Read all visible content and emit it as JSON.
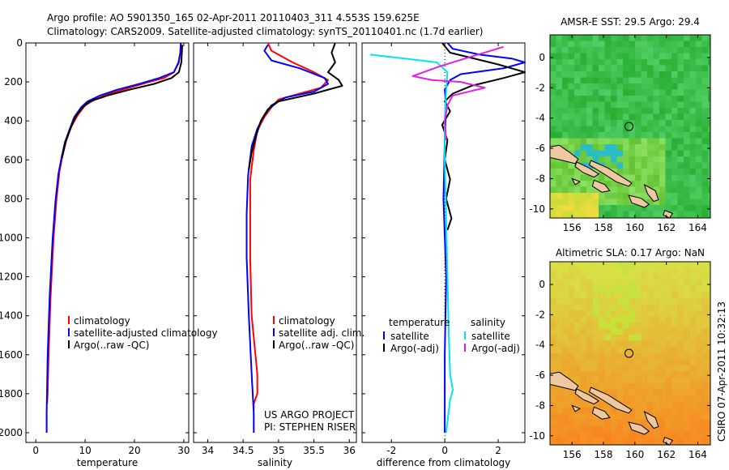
{
  "header": {
    "line1": "Argo profile: AO 5901350_165 02-Apr-2011 20110403_311 4.553S 159.625E",
    "line2": "Climatology: CARS2009. Satellite-adjusted climatology: synTS_20110401.nc (1.7d earlier)"
  },
  "side_label": "CSIRO 07-Apr-2011 10:32:13",
  "project": {
    "line1": "US ARGO PROJECT",
    "line2": "PI: STEPHEN RISER"
  },
  "colors": {
    "red": "#ff0000",
    "blue": "#0000ff",
    "black": "#000000",
    "cyan": "#00e5ee",
    "magenta": "#e020e0",
    "land": "#f0c8a0"
  },
  "chart_data": [
    {
      "type": "line",
      "xlabel": "temperature",
      "xlim": [
        -2,
        31
      ],
      "ylim": [
        0,
        2050
      ],
      "xticks": [
        "0",
        "10",
        "20",
        "30"
      ],
      "yticks": [
        "0",
        "200",
        "400",
        "600",
        "800",
        "1000",
        "1200",
        "1400",
        "1600",
        "1800",
        "2000"
      ],
      "legend": [
        "climatology",
        "satellite-adjusted climatology",
        "Argo(..raw -QC)"
      ],
      "series": [
        {
          "name": "climatology",
          "color": "#ff0000",
          "x": [
            29.4,
            29.3,
            28.9,
            28.0,
            26.0,
            23.0,
            19.0,
            15.0,
            12.0,
            10.0,
            8.5,
            7.2,
            6.2,
            5.4,
            4.8,
            4.2,
            3.6,
            3.0,
            2.6,
            2.4,
            2.3
          ],
          "y": [
            0,
            50,
            100,
            150,
            180,
            200,
            230,
            260,
            290,
            320,
            370,
            430,
            500,
            580,
            660,
            800,
            1000,
            1300,
            1600,
            1800,
            1850
          ]
        },
        {
          "name": "satellite-adjusted climatology",
          "color": "#0000ff",
          "x": [
            29.4,
            29.3,
            29.0,
            28.0,
            25.0,
            21.0,
            16.5,
            13.0,
            10.5,
            9.2,
            7.8,
            6.9,
            5.9,
            5.2,
            4.6,
            4.0,
            3.4,
            2.8,
            2.4,
            2.2,
            2.2
          ],
          "y": [
            0,
            50,
            100,
            150,
            180,
            210,
            240,
            270,
            300,
            330,
            380,
            440,
            510,
            590,
            670,
            810,
            1010,
            1310,
            1610,
            1900,
            2000
          ]
        },
        {
          "name": "Argo(..raw -QC)",
          "color": "#000000",
          "x": [
            29.7,
            29.6,
            29.5,
            29.0,
            27.5,
            24.0,
            19.0,
            14.5,
            11.0,
            9.5,
            8.0,
            7.0,
            6.0,
            5.3
          ],
          "y": [
            10,
            50,
            100,
            150,
            180,
            210,
            240,
            270,
            300,
            330,
            380,
            440,
            510,
            590
          ]
        }
      ]
    },
    {
      "type": "line",
      "xlabel": "salinity",
      "xlim": [
        33.8,
        36.1
      ],
      "ylim": [
        0,
        2050
      ],
      "xticks": [
        "34",
        "34.5",
        "35",
        "35.5",
        "36"
      ],
      "legend": [
        "climatology",
        "satellite adj. clim.",
        "Argo(..raw -QC)"
      ],
      "series": [
        {
          "name": "climatology",
          "color": "#ff0000",
          "x": [
            34.85,
            34.9,
            35.2,
            35.5,
            35.7,
            35.6,
            35.3,
            35.0,
            34.9,
            34.8,
            34.7,
            34.65,
            34.6,
            34.6,
            34.6,
            34.62,
            34.7,
            34.7,
            34.65,
            34.65
          ],
          "y": [
            0,
            40,
            100,
            150,
            190,
            230,
            260,
            290,
            330,
            380,
            450,
            550,
            700,
            900,
            1100,
            1400,
            1700,
            1800,
            1850,
            1880
          ]
        },
        {
          "name": "satellite adj. clim.",
          "color": "#0000ff",
          "x": [
            34.85,
            34.8,
            34.9,
            35.3,
            35.65,
            35.7,
            35.5,
            35.1,
            34.9,
            34.8,
            34.7,
            34.62,
            34.57,
            34.55,
            34.55,
            34.58,
            34.62,
            34.65,
            34.65
          ],
          "y": [
            10,
            40,
            90,
            130,
            180,
            210,
            250,
            280,
            320,
            370,
            440,
            530,
            680,
            880,
            1100,
            1400,
            1700,
            1900,
            2000
          ]
        },
        {
          "name": "Argo(..raw -QC)",
          "color": "#000000",
          "x": [
            35.8,
            35.75,
            35.8,
            35.7,
            35.85,
            35.9,
            35.5,
            35.0,
            34.85,
            34.75,
            34.68,
            34.62,
            34.58
          ],
          "y": [
            0,
            50,
            100,
            150,
            190,
            220,
            260,
            300,
            340,
            400,
            480,
            560,
            650
          ]
        }
      ]
    },
    {
      "type": "line",
      "xlabel": "difference from climatology",
      "xlim": [
        -3.1,
        3.0
      ],
      "ylim": [
        0,
        2050
      ],
      "xticks": [
        "-2",
        "0",
        "2"
      ],
      "legend_header": [
        "temperature",
        "salinity"
      ],
      "legend": [
        "satellite",
        "Argo(-adj)",
        "satellite",
        "Argo(-adj)"
      ],
      "series": [
        {
          "name": "satellite",
          "group": "temperature",
          "color": "#0000ff",
          "x": [
            0.1,
            0.3,
            1.3,
            2.5,
            3.0,
            2.2,
            0.6,
            0.2,
            0.0,
            0.05,
            0.0,
            -0.05,
            0.05,
            0.0,
            0.0
          ],
          "y": [
            0,
            30,
            60,
            80,
            100,
            130,
            160,
            190,
            240,
            320,
            500,
            800,
            1200,
            1600,
            2000
          ]
        },
        {
          "name": "Argo(-adj)",
          "group": "temperature",
          "color": "#000000",
          "x": [
            -0.1,
            0.2,
            2.0,
            3.0,
            2.2,
            1.0,
            0.3,
            0.0,
            0.2,
            -0.1,
            0.1,
            0.0,
            0.2,
            0.05,
            0.25,
            0.1
          ],
          "y": [
            0,
            50,
            110,
            150,
            180,
            220,
            260,
            300,
            350,
            420,
            500,
            600,
            700,
            800,
            900,
            960
          ]
        },
        {
          "name": "satellite",
          "group": "salinity",
          "color": "#00e5ee",
          "x": [
            -2.8,
            -1.5,
            -0.3,
            0.1,
            0.05,
            0.0,
            0.0,
            0.05,
            0.1,
            0.15,
            0.2,
            0.3,
            0.2,
            0.05
          ],
          "y": [
            60,
            80,
            100,
            150,
            250,
            400,
            600,
            900,
            1200,
            1500,
            1700,
            1780,
            1830,
            2000
          ]
        },
        {
          "name": "Argo(-adj)",
          "group": "salinity",
          "color": "#e020e0",
          "x": [
            2.2,
            1.0,
            -0.2,
            -1.2,
            -0.5,
            0.6,
            1.5,
            0.3,
            0.1,
            0.0,
            0.05
          ],
          "y": [
            20,
            70,
            120,
            170,
            190,
            200,
            230,
            270,
            320,
            400,
            500
          ]
        }
      ]
    },
    {
      "type": "heatmap",
      "title": "AMSR-E SST: 29.5 Argo: 29.4",
      "xlim": [
        154.6,
        164.8
      ],
      "ylim": [
        -10.6,
        1.5
      ],
      "xticks": [
        "156",
        "158",
        "160",
        "162",
        "164"
      ],
      "yticks": [
        "0",
        "-2",
        "-4",
        "-6",
        "-8",
        "-10"
      ],
      "marker": {
        "lon": 159.625,
        "lat": -4.553
      }
    },
    {
      "type": "heatmap",
      "title": "Altimetric SLA: 0.17 Argo: NaN",
      "xlim": [
        154.6,
        164.8
      ],
      "ylim": [
        -10.6,
        1.5
      ],
      "xticks": [
        "156",
        "158",
        "160",
        "162",
        "164"
      ],
      "yticks": [
        "0",
        "-2",
        "-4",
        "-6",
        "-8",
        "-10"
      ],
      "marker": {
        "lon": 159.625,
        "lat": -4.553
      }
    }
  ]
}
